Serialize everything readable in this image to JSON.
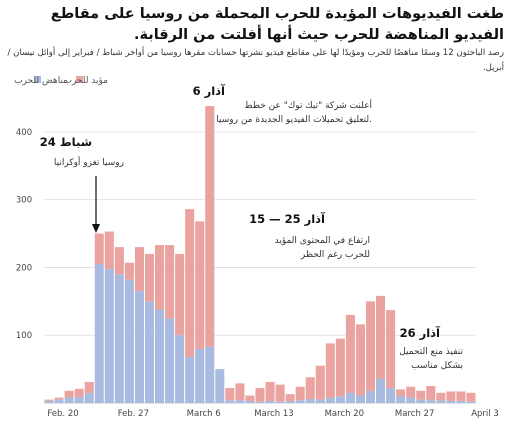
{
  "title": "طغت الفيديوهات المؤيدة للحرب المحملة من روسيا على مقاطع الفيديو المناهضة للحرب حيث أنها أفلتت من الرقابة.",
  "subtitle": "رصد الباحثون 12 وسمًا مناهضًا للحرب ومؤيدًا لها على مقاطع فيديو نشرتها حسابات مقرها روسيا من أواخر شباط / فبراير إلى أوائل نيسان / أبريل.",
  "colors": {
    "pro_war": "#eaa39f",
    "anti_war": "#a9bbe0",
    "grid": "#dddddd"
  },
  "chart_data": {
    "type": "bar",
    "stacked": true,
    "x": [
      "Feb. 20",
      "Feb. 21",
      "Feb. 22",
      "Feb. 23",
      "Feb. 24",
      "Feb. 25",
      "Feb. 26",
      "Feb. 27",
      "Feb. 28",
      "Mar. 1",
      "Mar. 2",
      "Mar. 3",
      "Mar. 4",
      "Mar. 5",
      "Mar. 6",
      "Mar. 7",
      "Mar. 8",
      "Mar. 9",
      "Mar. 10",
      "Mar. 11",
      "Mar. 12",
      "Mar. 13",
      "Mar. 14",
      "Mar. 15",
      "Mar. 16",
      "Mar. 17",
      "Mar. 18",
      "Mar. 19",
      "Mar. 20",
      "Mar. 21",
      "Mar. 22",
      "Mar. 23",
      "Mar. 24",
      "Mar. 25",
      "Mar. 26",
      "Mar. 27",
      "Mar. 28",
      "Mar. 29",
      "Mar. 30",
      "Mar. 31",
      "Apr. 1",
      "Apr. 2",
      "Apr. 3"
    ],
    "series": [
      {
        "name": "مناهض للحرب",
        "values": [
          3,
          5,
          8,
          9,
          15,
          205,
          198,
          190,
          182,
          165,
          150,
          138,
          125,
          100,
          68,
          80,
          83,
          50,
          4,
          4,
          3,
          2,
          3,
          2,
          3,
          4,
          6,
          5,
          8,
          10,
          15,
          11,
          18,
          36,
          22,
          10,
          8,
          5,
          4,
          4,
          3,
          3,
          2
        ]
      },
      {
        "name": "مؤيد للحرب",
        "values": [
          2,
          3,
          10,
          12,
          16,
          45,
          55,
          40,
          25,
          65,
          70,
          95,
          108,
          120,
          218,
          188,
          355,
          0,
          18,
          25,
          8,
          20,
          28,
          25,
          10,
          20,
          32,
          50,
          80,
          85,
          115,
          105,
          132,
          122,
          115,
          10,
          16,
          13,
          21,
          11,
          14,
          14,
          13
        ]
      }
    ],
    "xticks": [
      "Feb. 20",
      "Feb. 27",
      "March 6",
      "March 13",
      "March 20",
      "March 27",
      "April 3"
    ],
    "yticks": [
      100,
      200,
      300,
      400
    ],
    "ylim": [
      0,
      450
    ]
  },
  "annotations": [
    {
      "date": "24 شباط",
      "text": [
        "روسيا تغزو أوكرانيا"
      ]
    },
    {
      "date": "6 آذار",
      "text": [
        "أعلنت شركة \"تيك توك\" عن خطط",
        "لتعليق تحميلات الفيديو الجديدة من روسيا."
      ]
    },
    {
      "date": "15 — 25 آذار",
      "text": [
        "ارتفاع في المحتوى المؤيد",
        "للحرب رغم الحظر"
      ]
    },
    {
      "date": "26 آذار",
      "text": [
        "تنفيذ منع التحميل",
        "بشكل مناسب"
      ]
    }
  ]
}
